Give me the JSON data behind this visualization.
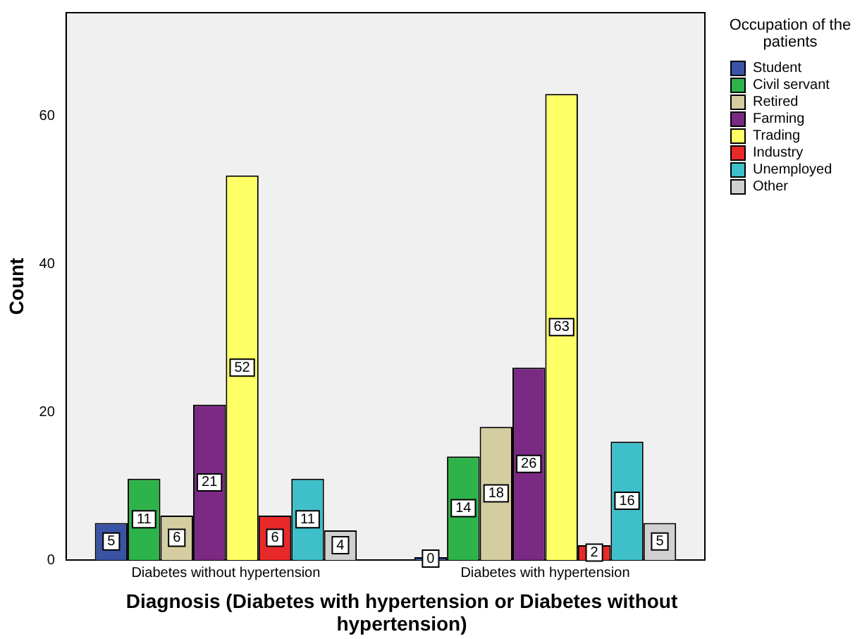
{
  "chart_data": {
    "type": "bar",
    "xlabel": "Diagnosis (Diabetes with hypertension or Diabetes without hypertension)",
    "ylabel": "Count",
    "legend_title": "Occupation of the patients",
    "categories": [
      "Diabetes without hypertension",
      "Diabetes with hypertension"
    ],
    "series": [
      {
        "name": "Student",
        "color": "#3a53a4",
        "values": [
          5,
          0
        ]
      },
      {
        "name": "Civil servant",
        "color": "#2db34a",
        "values": [
          11,
          14
        ]
      },
      {
        "name": "Retired",
        "color": "#d3cda0",
        "values": [
          6,
          18
        ]
      },
      {
        "name": "Farming",
        "color": "#7a2a82",
        "values": [
          21,
          26
        ]
      },
      {
        "name": "Trading",
        "color": "#ffff66",
        "values": [
          52,
          63
        ]
      },
      {
        "name": "Industry",
        "color": "#e8292a",
        "values": [
          6,
          2
        ]
      },
      {
        "name": "Unemployed",
        "color": "#3fbfc9",
        "values": [
          11,
          16
        ]
      },
      {
        "name": "Other",
        "color": "#d0d0d0",
        "values": [
          4,
          5
        ]
      }
    ],
    "ylim": [
      0,
      74
    ],
    "yticks": [
      0,
      20,
      40,
      60
    ],
    "grid": false,
    "legend": "top right",
    "data_labels": true
  }
}
